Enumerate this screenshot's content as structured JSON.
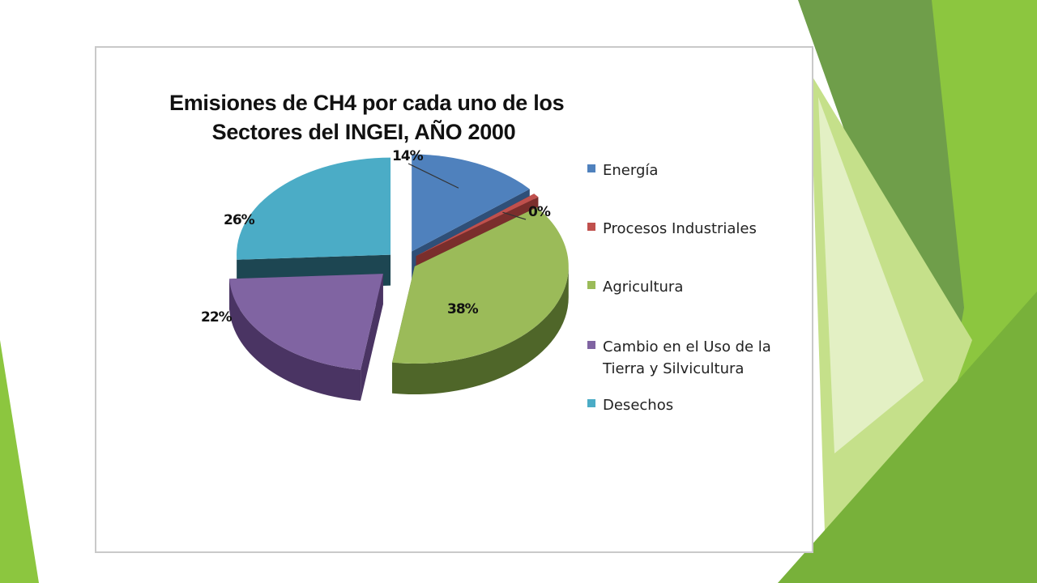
{
  "colors": {
    "slide_green_dark": "#6f9e4a",
    "slide_green": "#8cc63f",
    "slide_green_light": "#c5e08a",
    "slide_green_pale": "#e3f0c4"
  },
  "chart_data": {
    "type": "pie",
    "title_lines": [
      "Emisiones de CH4 por cada uno de los",
      "Sectores  del INGEI, AÑO 2000"
    ],
    "legend_position": "right",
    "slices": [
      {
        "label": "Energía",
        "value": 14,
        "display": "14%",
        "color": "#4f81bd",
        "side_color": "#2f4f78"
      },
      {
        "label": "Procesos Industriales",
        "value": 0,
        "display": "0%",
        "color": "#c0504d",
        "side_color": "#7a2e2c"
      },
      {
        "label": "Agricultura",
        "value": 38,
        "display": "38%",
        "color": "#9bbb59",
        "side_color": "#4f6629"
      },
      {
        "label": "Cambio en el Uso de la Tierra y Silvicultura",
        "value": 22,
        "display": "22%",
        "color": "#8064a2",
        "side_color": "#4a3463"
      },
      {
        "label": "Desechos",
        "value": 26,
        "display": "26%",
        "color": "#4bacc6",
        "side_color": "#1d4652"
      }
    ]
  }
}
